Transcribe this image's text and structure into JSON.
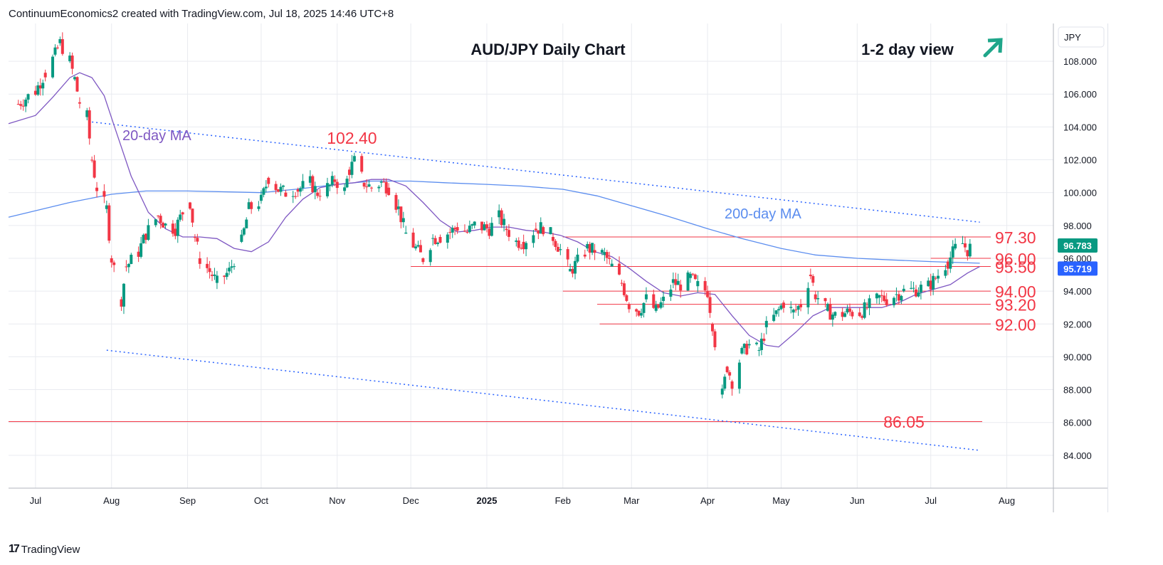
{
  "header": {
    "attribution": "ContinuumEconomics2 created with TradingView.com, Jul 18, 2025 14:46 UTC+8"
  },
  "footer": {
    "logo_text": "TradingView"
  },
  "colors": {
    "up": "#089981",
    "down": "#f23645",
    "ma20": "#7e57c2",
    "ma200": "#5b8def",
    "level": "#f23645",
    "trend": "#2962ff",
    "grid": "#e9ebf0",
    "arrow": "#1fa68a",
    "price_badge": "#089981",
    "ma_badge": "#2962ff"
  },
  "chart_data": {
    "type": "candlestick",
    "title": "AUD/JPY Daily Chart",
    "view_label": "1-2 day view",
    "view_direction": "up",
    "currency_label": "JPY",
    "y_ticks": [
      108,
      106,
      104,
      102,
      100,
      98,
      96,
      94,
      92,
      90,
      88,
      86,
      84
    ],
    "y_tick_labels": [
      "108.000",
      "106.000",
      "104.000",
      "102.000",
      "100.000",
      "98.000",
      "96.000",
      "94.000",
      "92.000",
      "90.000",
      "88.000",
      "86.000",
      "84.000"
    ],
    "ylim": [
      82.0,
      110.3
    ],
    "x_months": [
      {
        "label": "Jul",
        "date": "2024-07-01",
        "bold": false
      },
      {
        "label": "Aug",
        "date": "2024-08-01",
        "bold": false
      },
      {
        "label": "Sep",
        "date": "2024-09-01",
        "bold": false
      },
      {
        "label": "Oct",
        "date": "2024-10-01",
        "bold": false
      },
      {
        "label": "Nov",
        "date": "2024-11-01",
        "bold": false
      },
      {
        "label": "Dec",
        "date": "2024-12-01",
        "bold": false
      },
      {
        "label": "2025",
        "date": "2025-01-01",
        "bold": true
      },
      {
        "label": "Feb",
        "date": "2025-02-01",
        "bold": false
      },
      {
        "label": "Mar",
        "date": "2025-03-01",
        "bold": false
      },
      {
        "label": "Apr",
        "date": "2025-04-01",
        "bold": false
      },
      {
        "label": "May",
        "date": "2025-05-01",
        "bold": false
      },
      {
        "label": "Jun",
        "date": "2025-06-01",
        "bold": false
      },
      {
        "label": "Jul",
        "date": "2025-07-01",
        "bold": false
      },
      {
        "label": "Aug",
        "date": "2025-08-01",
        "bold": false
      }
    ],
    "x_range": [
      "2024-06-20",
      "2025-08-20"
    ],
    "price_series": [
      [
        "2024-06-24",
        105.4
      ],
      [
        "2024-07-01",
        106.2
      ],
      [
        "2024-07-05",
        107.3
      ],
      [
        "2024-07-09",
        108.4
      ],
      [
        "2024-07-11",
        109.1
      ],
      [
        "2024-07-15",
        108.0
      ],
      [
        "2024-07-17",
        106.9
      ],
      [
        "2024-07-19",
        105.5
      ],
      [
        "2024-07-22",
        104.6
      ],
      [
        "2024-07-24",
        102.0
      ],
      [
        "2024-07-26",
        100.3
      ],
      [
        "2024-07-30",
        99.0
      ],
      [
        "2024-08-01",
        96.0
      ],
      [
        "2024-08-05",
        93.5
      ],
      [
        "2024-08-07",
        95.5
      ],
      [
        "2024-08-12",
        96.4
      ],
      [
        "2024-08-15",
        97.5
      ],
      [
        "2024-08-20",
        98.6
      ],
      [
        "2024-08-23",
        98.0
      ],
      [
        "2024-08-27",
        97.8
      ],
      [
        "2024-08-30",
        98.8
      ],
      [
        "2024-09-02",
        99.4
      ],
      [
        "2024-09-04",
        97.3
      ],
      [
        "2024-09-06",
        96.0
      ],
      [
        "2024-09-11",
        95.0
      ],
      [
        "2024-09-13",
        94.5
      ],
      [
        "2024-09-18",
        95.2
      ],
      [
        "2024-09-23",
        97.0
      ],
      [
        "2024-09-26",
        99.0
      ],
      [
        "2024-10-01",
        99.5
      ],
      [
        "2024-10-04",
        100.9
      ],
      [
        "2024-10-08",
        100.2
      ],
      [
        "2024-10-11",
        100.0
      ],
      [
        "2024-10-16",
        100.2
      ],
      [
        "2024-10-21",
        100.6
      ],
      [
        "2024-10-24",
        100.0
      ],
      [
        "2024-10-29",
        100.4
      ],
      [
        "2024-10-31",
        100.8
      ],
      [
        "2024-11-04",
        100.1
      ],
      [
        "2024-11-06",
        101.4
      ],
      [
        "2024-11-08",
        101.9
      ],
      [
        "2024-11-12",
        100.6
      ],
      [
        "2024-11-15",
        100.3
      ],
      [
        "2024-11-19",
        100.6
      ],
      [
        "2024-11-22",
        100.3
      ],
      [
        "2024-11-26",
        99.0
      ],
      [
        "2024-11-29",
        97.5
      ],
      [
        "2024-12-03",
        96.6
      ],
      [
        "2024-12-06",
        96.0
      ],
      [
        "2024-12-10",
        97.2
      ],
      [
        "2024-12-13",
        97.3
      ],
      [
        "2024-12-17",
        97.6
      ],
      [
        "2024-12-20",
        97.9
      ],
      [
        "2024-12-24",
        97.6
      ],
      [
        "2024-12-27",
        98.0
      ],
      [
        "2025-01-02",
        97.8
      ],
      [
        "2025-01-06",
        98.5
      ],
      [
        "2025-01-09",
        97.8
      ],
      [
        "2025-01-13",
        97.0
      ],
      [
        "2025-01-16",
        97.0
      ],
      [
        "2025-01-21",
        97.8
      ],
      [
        "2025-01-24",
        97.9
      ],
      [
        "2025-01-28",
        97.3
      ],
      [
        "2025-01-31",
        96.5
      ],
      [
        "2025-02-04",
        95.2
      ],
      [
        "2025-02-07",
        95.8
      ],
      [
        "2025-02-11",
        96.6
      ],
      [
        "2025-02-14",
        96.5
      ],
      [
        "2025-02-18",
        96.2
      ],
      [
        "2025-02-21",
        95.5
      ],
      [
        "2025-02-25",
        94.5
      ],
      [
        "2025-02-28",
        93.2
      ],
      [
        "2025-03-04",
        92.8
      ],
      [
        "2025-03-07",
        93.5
      ],
      [
        "2025-03-11",
        92.8
      ],
      [
        "2025-03-14",
        93.4
      ],
      [
        "2025-03-18",
        94.5
      ],
      [
        "2025-03-21",
        94.4
      ],
      [
        "2025-03-25",
        94.8
      ],
      [
        "2025-03-28",
        94.3
      ],
      [
        "2025-04-01",
        94.0
      ],
      [
        "2025-04-03",
        92.0
      ],
      [
        "2025-04-07",
        87.7
      ],
      [
        "2025-04-09",
        89.4
      ],
      [
        "2025-04-11",
        88.5
      ],
      [
        "2025-04-15",
        90.2
      ],
      [
        "2025-04-18",
        90.7
      ],
      [
        "2025-04-22",
        90.4
      ],
      [
        "2025-04-25",
        91.8
      ],
      [
        "2025-04-29",
        92.6
      ],
      [
        "2025-05-02",
        93.3
      ],
      [
        "2025-05-06",
        92.7
      ],
      [
        "2025-05-09",
        93.2
      ],
      [
        "2025-05-13",
        95.0
      ],
      [
        "2025-05-15",
        93.8
      ],
      [
        "2025-05-20",
        92.8
      ],
      [
        "2025-05-23",
        92.5
      ],
      [
        "2025-05-28",
        92.7
      ],
      [
        "2025-06-02",
        92.7
      ],
      [
        "2025-06-05",
        93.0
      ],
      [
        "2025-06-10",
        93.6
      ],
      [
        "2025-06-13",
        93.5
      ],
      [
        "2025-06-17",
        93.8
      ],
      [
        "2025-06-20",
        94.0
      ],
      [
        "2025-06-25",
        94.1
      ],
      [
        "2025-06-30",
        94.3
      ],
      [
        "2025-07-03",
        94.8
      ],
      [
        "2025-07-08",
        95.8
      ],
      [
        "2025-07-11",
        96.6
      ],
      [
        "2025-07-14",
        96.9
      ],
      [
        "2025-07-16",
        96.5
      ],
      [
        "2025-07-18",
        96.78
      ]
    ],
    "ma20": [
      [
        "2024-06-20",
        104.2
      ],
      [
        "2024-07-01",
        104.7
      ],
      [
        "2024-07-08",
        105.8
      ],
      [
        "2024-07-15",
        107.0
      ],
      [
        "2024-07-19",
        107.3
      ],
      [
        "2024-07-24",
        107.0
      ],
      [
        "2024-07-29",
        105.9
      ],
      [
        "2024-08-02",
        104.1
      ],
      [
        "2024-08-09",
        101.0
      ],
      [
        "2024-08-16",
        98.8
      ],
      [
        "2024-08-23",
        97.8
      ],
      [
        "2024-08-30",
        97.3
      ],
      [
        "2024-09-06",
        97.3
      ],
      [
        "2024-09-13",
        97.2
      ],
      [
        "2024-09-20",
        96.6
      ],
      [
        "2024-09-27",
        96.4
      ],
      [
        "2024-10-04",
        97.0
      ],
      [
        "2024-10-11",
        98.5
      ],
      [
        "2024-10-18",
        99.6
      ],
      [
        "2024-10-25",
        100.3
      ],
      [
        "2024-11-01",
        100.5
      ],
      [
        "2024-11-08",
        100.6
      ],
      [
        "2024-11-15",
        100.8
      ],
      [
        "2024-11-22",
        100.8
      ],
      [
        "2024-11-29",
        100.4
      ],
      [
        "2024-12-06",
        99.4
      ],
      [
        "2024-12-13",
        98.3
      ],
      [
        "2024-12-20",
        97.6
      ],
      [
        "2024-12-27",
        97.7
      ],
      [
        "2025-01-03",
        97.9
      ],
      [
        "2025-01-10",
        97.9
      ],
      [
        "2025-01-17",
        97.7
      ],
      [
        "2025-01-24",
        97.6
      ],
      [
        "2025-01-31",
        97.4
      ],
      [
        "2025-02-07",
        97.0
      ],
      [
        "2025-02-14",
        96.4
      ],
      [
        "2025-02-21",
        96.1
      ],
      [
        "2025-02-28",
        95.4
      ],
      [
        "2025-03-07",
        94.6
      ],
      [
        "2025-03-14",
        93.9
      ],
      [
        "2025-03-21",
        93.7
      ],
      [
        "2025-03-28",
        93.9
      ],
      [
        "2025-04-04",
        93.8
      ],
      [
        "2025-04-11",
        92.5
      ],
      [
        "2025-04-18",
        91.3
      ],
      [
        "2025-04-25",
        90.7
      ],
      [
        "2025-04-30",
        90.6
      ],
      [
        "2025-05-07",
        91.5
      ],
      [
        "2025-05-14",
        92.5
      ],
      [
        "2025-05-21",
        93.0
      ],
      [
        "2025-05-28",
        93.0
      ],
      [
        "2025-06-04",
        93.0
      ],
      [
        "2025-06-11",
        93.0
      ],
      [
        "2025-06-18",
        93.3
      ],
      [
        "2025-06-25",
        93.8
      ],
      [
        "2025-07-02",
        94.1
      ],
      [
        "2025-07-09",
        94.4
      ],
      [
        "2025-07-16",
        95.1
      ],
      [
        "2025-07-21",
        95.5
      ]
    ],
    "ma200": [
      [
        "2024-06-20",
        98.5
      ],
      [
        "2024-07-15",
        99.4
      ],
      [
        "2024-08-01",
        99.9
      ],
      [
        "2024-08-15",
        100.1
      ],
      [
        "2024-09-01",
        100.1
      ],
      [
        "2024-10-01",
        100.0
      ],
      [
        "2024-10-15",
        100.2
      ],
      [
        "2024-11-01",
        100.5
      ],
      [
        "2024-11-15",
        100.7
      ],
      [
        "2024-12-01",
        100.7
      ],
      [
        "2024-12-15",
        100.6
      ],
      [
        "2025-01-01",
        100.5
      ],
      [
        "2025-01-15",
        100.4
      ],
      [
        "2025-02-01",
        100.2
      ],
      [
        "2025-02-15",
        99.8
      ],
      [
        "2025-03-01",
        99.2
      ],
      [
        "2025-03-15",
        98.6
      ],
      [
        "2025-04-01",
        97.8
      ],
      [
        "2025-04-15",
        97.2
      ],
      [
        "2025-05-01",
        96.6
      ],
      [
        "2025-05-15",
        96.2
      ],
      [
        "2025-06-01",
        96.0
      ],
      [
        "2025-06-15",
        95.9
      ],
      [
        "2025-07-01",
        95.8
      ],
      [
        "2025-07-21",
        95.7
      ]
    ],
    "trendlines": [
      {
        "name": "upper-trendline",
        "from": [
          "2024-07-24",
          104.3
        ],
        "to": [
          "2025-07-21",
          98.2
        ]
      },
      {
        "name": "lower-trendline",
        "from": [
          "2024-07-30",
          90.4
        ],
        "to": [
          "2025-07-21",
          84.3
        ]
      }
    ],
    "levels": [
      {
        "label": "97.30",
        "value": 97.3,
        "from": "2025-02-01"
      },
      {
        "label": "96.00",
        "value": 96.0,
        "from": "2025-07-01"
      },
      {
        "label": "95.50",
        "value": 95.5,
        "from": "2024-12-01"
      },
      {
        "label": "94.00",
        "value": 94.0,
        "from": "2025-02-01"
      },
      {
        "label": "93.20",
        "value": 93.2,
        "from": "2025-02-15"
      },
      {
        "label": "92.00",
        "value": 92.0,
        "from": "2025-02-16"
      },
      {
        "label": "86.05",
        "value": 86.05,
        "from": "2024-06-20"
      }
    ],
    "annotations": [
      {
        "name": "high-label",
        "text": "102.40",
        "date": "2024-11-07",
        "value": 102.4
      },
      {
        "name": "low-label",
        "text": "86.05",
        "value": 86.05
      },
      {
        "name": "ma20-label",
        "text": "20-day MA",
        "date": "2024-08-15",
        "value": 103.5
      },
      {
        "name": "ma200-label",
        "text": "200-day MA",
        "date": "2025-05-05",
        "value": 98.5
      }
    ],
    "last_price": {
      "value": 96.78,
      "label": "96.783"
    },
    "ma200_value": {
      "value": 95.72,
      "label": "95.719"
    }
  }
}
